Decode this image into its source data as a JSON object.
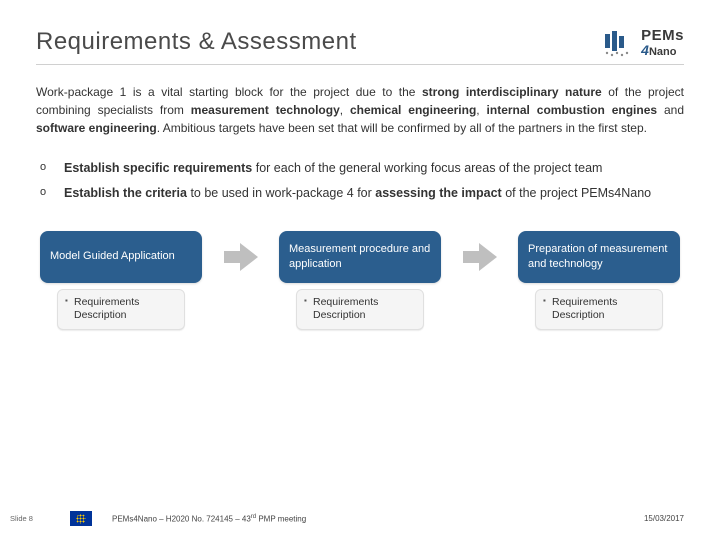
{
  "title": "Requirements & Assessment",
  "logo": {
    "line1": "PEMs",
    "four": "4",
    "line2_rest": "Nano",
    "bar_color": "#2a5a8a",
    "dot_color": "#8a8a8a"
  },
  "intro_html": "Work-package 1 is a vital starting block for the project due to the <b>strong interdisciplinary nature</b> of the project combining specialists from <b>measurement technology</b>, <b>chemical engineering</b>, <b>internal combustion engines</b> and <b>software engineering</b>. Ambitious targets have been set that will be confirmed by all of the partners in the first step.",
  "bullets": [
    "<b>Establish specific requirements</b> for each of the general working focus areas of the project team",
    "<b>Establish the criteria</b> to be used in work-package 4 for <b>assessing the impact</b> of the project PEMs4Nano"
  ],
  "flow": {
    "box_color": "#2b5e8e",
    "arrow_color": "#bfbfbf",
    "boxes": [
      "Model Guided Application",
      "Measurement procedure and application",
      "Preparation of measurement and technology"
    ],
    "sub_label": "Requirements Description"
  },
  "footer": {
    "slide_num": "Slide 8",
    "center": "PEMs4Nano – H2020 No. 724145 – 43",
    "center_sup": "rd",
    "center_tail": " PMP meeting",
    "date": "15/03/2017"
  }
}
